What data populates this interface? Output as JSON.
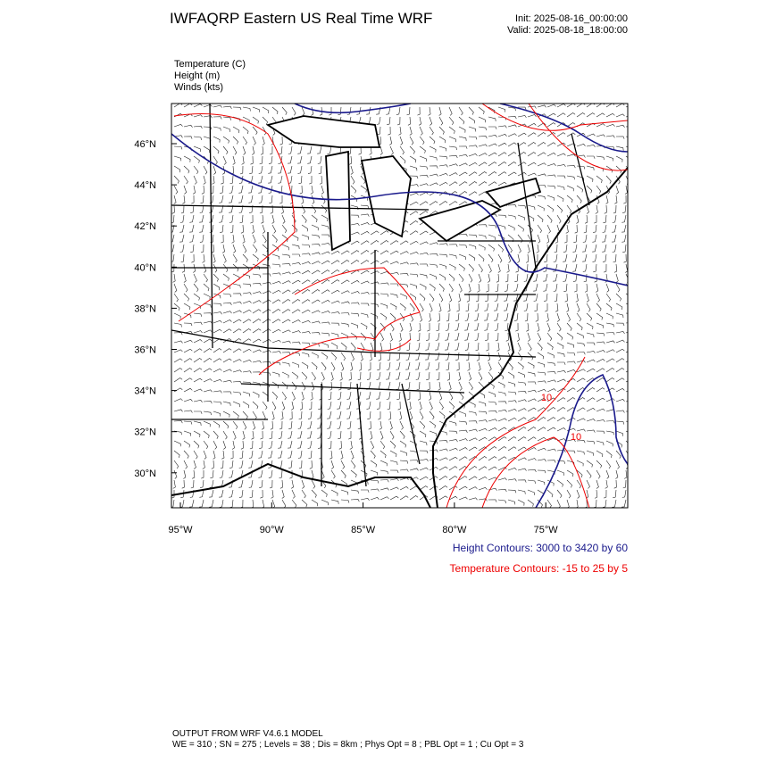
{
  "header": {
    "title": "IWFAQRP Eastern US Real Time WRF",
    "init": "Init: 2025-08-16_00:00:00",
    "valid": "Valid: 2025-08-18_18:00:00"
  },
  "fields": [
    "Temperature   (C)",
    "Height   (m)",
    "Winds   (kts)"
  ],
  "lat_labels": [
    "46°N",
    "44°N",
    "42°N",
    "40°N",
    "38°N",
    "36°N",
    "34°N",
    "32°N",
    "30°N"
  ],
  "lon_labels": [
    "95°W",
    "90°W",
    "85°W",
    "80°W",
    "75°W"
  ],
  "contour_labels": [
    "10",
    "10"
  ],
  "legend": {
    "height": "Height Contours: 3000 to 3420 by 60",
    "temperature": "Temperature Contours: -15 to 25 by 5"
  },
  "footer": [
    "OUTPUT FROM WRF V4.6.1 MODEL",
    "WE = 310 ; SN = 275 ; Levels = 38 ; Dis = 8km ; Phys Opt = 8 ; PBL Opt = 1 ; Cu Opt = 3"
  ]
}
